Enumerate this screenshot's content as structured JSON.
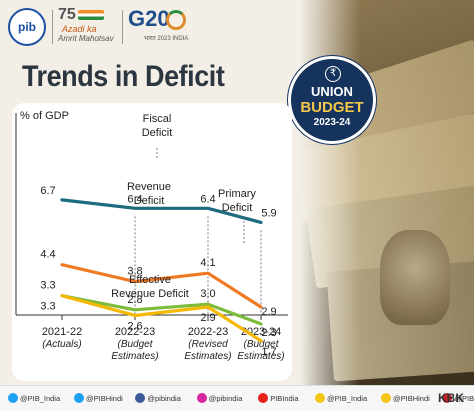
{
  "header": {
    "pib_logo": "pib",
    "azadi_number": "75",
    "azadi_line1": "Azadi ka",
    "azadi_line2": "Amrit Mahotsav",
    "g20_logo": "G20",
    "g20_sub": "भारत 2023 INDIA"
  },
  "title": "Trends in Deficit",
  "badge": {
    "line1": "UNION",
    "line2": "BUDGET",
    "line3": "2023-24"
  },
  "chart_data": {
    "type": "line",
    "ylabel": "% of GDP",
    "categories": [
      [
        "2021-22",
        "(Actuals)"
      ],
      [
        "2022-23",
        "(Budget",
        "Estimates)"
      ],
      [
        "2022-23",
        "(Revised",
        "Estimates)"
      ],
      [
        "2023-24",
        "(Budget",
        "Estimates)"
      ]
    ],
    "series": [
      {
        "name": "Fiscal Deficit",
        "name_lines": [
          "Fiscal",
          "Deficit"
        ],
        "color": "#1d6b7e",
        "values": [
          6.7,
          6.4,
          6.4,
          5.9
        ]
      },
      {
        "name": "Revenue Deficit",
        "name_lines": [
          "Revenue",
          "Deficit"
        ],
        "color": "#f07a22",
        "values": [
          4.4,
          3.8,
          4.1,
          2.9
        ]
      },
      {
        "name": "Primary Deficit",
        "name_lines": [
          "Primary",
          "Deficit"
        ],
        "color": "#7dbb3a",
        "values": [
          3.3,
          2.8,
          3.0,
          2.3
        ]
      },
      {
        "name": "Effective Revenue Deficit",
        "name_lines": [
          "Effective",
          "Revenue Deficit"
        ],
        "color": "#f5b800",
        "values": [
          3.3,
          2.6,
          2.9,
          1.7
        ]
      }
    ]
  },
  "footer": {
    "social": [
      {
        "icon": "twitter-icon",
        "label": "@PIB_India",
        "color": "#1da1f2"
      },
      {
        "icon": "twitter-icon",
        "label": "@PIBHindi",
        "color": "#1da1f2"
      },
      {
        "icon": "facebook-icon",
        "label": "@pibindia",
        "color": "#3b5998"
      },
      {
        "icon": "instagram-icon",
        "label": "@pibindia",
        "color": "#d6249f"
      },
      {
        "icon": "youtube-icon",
        "label": "PIBIndia",
        "color": "#e62117"
      },
      {
        "icon": "koo-icon",
        "label": "@PIB_India",
        "color": "#f5c518"
      },
      {
        "icon": "koo-icon",
        "label": "@PIBHindi",
        "color": "#f5c518"
      },
      {
        "icon": "pinterest-icon",
        "label": "@PIBIndia",
        "color": "#cb2027"
      }
    ],
    "brand": "KBK"
  }
}
